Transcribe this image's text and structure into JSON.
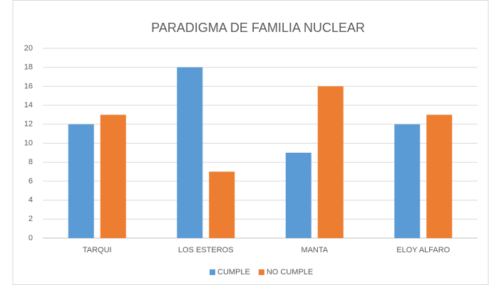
{
  "chart_data": {
    "type": "bar",
    "title": "PARADIGMA DE FAMILIA NUCLEAR",
    "categories": [
      "TARQUI",
      "LOS ESTEROS",
      "MANTA",
      "ELOY ALFARO"
    ],
    "series": [
      {
        "name": "CUMPLE",
        "color": "#5b9bd5",
        "values": [
          12,
          18,
          9,
          12
        ]
      },
      {
        "name": "NO CUMPLE",
        "color": "#ed7d31",
        "values": [
          13,
          7,
          16,
          13
        ]
      }
    ],
    "ylim": [
      0,
      20
    ],
    "yticks": [
      0,
      2,
      4,
      6,
      8,
      10,
      12,
      14,
      16,
      18,
      20
    ],
    "grid": true,
    "legend": "bottom"
  }
}
